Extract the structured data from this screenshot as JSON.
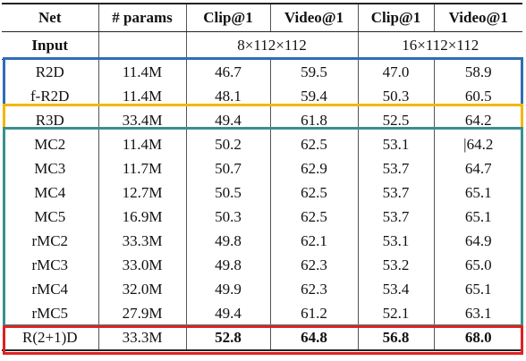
{
  "headers": [
    "Net",
    "# params",
    "Clip@1",
    "Video@1",
    "Clip@1",
    "Video@1"
  ],
  "input_row": {
    "label": "Input",
    "params": "",
    "res8": "8×112×112",
    "res16": "16×112×112"
  },
  "rows": [
    {
      "net": "R2D",
      "params": "11.4M",
      "c8": "46.7",
      "v8": "59.5",
      "c16": "47.0",
      "v16": "58.9",
      "bold": false
    },
    {
      "net": "f-R2D",
      "params": "11.4M",
      "c8": "48.1",
      "v8": "59.4",
      "c16": "50.3",
      "v16": "60.5",
      "bold": false
    },
    {
      "net": "R3D",
      "params": "33.4M",
      "c8": "49.4",
      "v8": "61.8",
      "c16": "52.5",
      "v16": "64.2",
      "bold": false
    },
    {
      "net": "MC2",
      "params": "11.4M",
      "c8": "50.2",
      "v8": "62.5",
      "c16": "53.1",
      "v16": "|64.2",
      "bold": false
    },
    {
      "net": "MC3",
      "params": "11.7M",
      "c8": "50.7",
      "v8": "62.9",
      "c16": "53.7",
      "v16": "64.7",
      "bold": false
    },
    {
      "net": "MC4",
      "params": "12.7M",
      "c8": "50.5",
      "v8": "62.5",
      "c16": "53.7",
      "v16": "65.1",
      "bold": false
    },
    {
      "net": "MC5",
      "params": "16.9M",
      "c8": "50.3",
      "v8": "62.5",
      "c16": "53.7",
      "v16": "65.1",
      "bold": false
    },
    {
      "net": "rMC2",
      "params": "33.3M",
      "c8": "49.8",
      "v8": "62.1",
      "c16": "53.1",
      "v16": "64.9",
      "bold": false
    },
    {
      "net": "rMC3",
      "params": "33.0M",
      "c8": "49.8",
      "v8": "62.3",
      "c16": "53.2",
      "v16": "65.0",
      "bold": false
    },
    {
      "net": "rMC4",
      "params": "32.0M",
      "c8": "49.9",
      "v8": "62.3",
      "c16": "53.4",
      "v16": "65.1",
      "bold": false
    },
    {
      "net": "rMC5",
      "params": "27.9M",
      "c8": "49.4",
      "v8": "61.2",
      "c16": "52.1",
      "v16": "63.1",
      "bold": false
    },
    {
      "net": "R(2+1)D",
      "params": "33.3M",
      "c8": "52.8",
      "v8": "64.8",
      "c16": "56.8",
      "v16": "68.0",
      "bold": true
    }
  ],
  "highlight_colors": {
    "2d_group": "#2e6db4",
    "r3d": "#f2b705",
    "mc_group": "#3a8f8f",
    "r21d": "#e02020"
  }
}
